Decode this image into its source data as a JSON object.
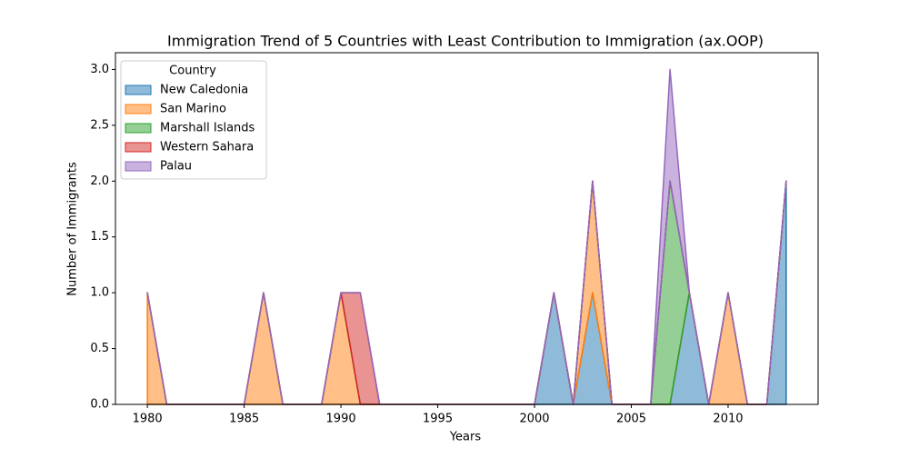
{
  "chart_data": {
    "type": "stacked_area",
    "title": "Immigration Trend of 5 Countries with Least Contribution to Immigration (ax.OOP)",
    "x_label": "Years",
    "y_label": "Number of Immigrants",
    "legend_title": "Country",
    "legend_position": "upper left",
    "x": [
      1980,
      1981,
      1982,
      1983,
      1984,
      1985,
      1986,
      1987,
      1988,
      1989,
      1990,
      1991,
      1992,
      1993,
      1994,
      1995,
      1996,
      1997,
      1998,
      1999,
      2000,
      2001,
      2002,
      2003,
      2004,
      2005,
      2006,
      2007,
      2008,
      2009,
      2010,
      2011,
      2012,
      2013
    ],
    "series": [
      {
        "name": "New Caledonia",
        "color": "#1f77b4",
        "values": [
          0,
          0,
          0,
          0,
          0,
          0,
          0,
          0,
          0,
          0,
          0,
          0,
          0,
          0,
          0,
          0,
          0,
          0,
          0,
          0,
          0,
          1,
          0,
          1,
          0,
          0,
          0,
          0,
          1,
          0,
          0,
          0,
          0,
          2
        ]
      },
      {
        "name": "San Marino",
        "color": "#ff7f0e",
        "values": [
          1,
          0,
          0,
          0,
          0,
          0,
          1,
          0,
          0,
          0,
          1,
          0,
          0,
          0,
          0,
          0,
          0,
          0,
          0,
          0,
          0,
          0,
          0,
          1,
          0,
          0,
          0,
          0,
          0,
          0,
          1,
          0,
          0,
          0
        ]
      },
      {
        "name": "Marshall Islands",
        "color": "#2ca02c",
        "values": [
          0,
          0,
          0,
          0,
          0,
          0,
          0,
          0,
          0,
          0,
          0,
          0,
          0,
          0,
          0,
          0,
          0,
          0,
          0,
          0,
          0,
          0,
          0,
          0,
          0,
          0,
          0,
          2,
          0,
          0,
          0,
          0,
          0,
          0
        ]
      },
      {
        "name": "Western Sahara",
        "color": "#d62728",
        "values": [
          0,
          0,
          0,
          0,
          0,
          0,
          0,
          0,
          0,
          0,
          0,
          1,
          0,
          0,
          0,
          0,
          0,
          0,
          0,
          0,
          0,
          0,
          0,
          0,
          0,
          0,
          0,
          0,
          0,
          0,
          0,
          0,
          0,
          0
        ]
      },
      {
        "name": "Palau",
        "color": "#9467bd",
        "values": [
          0,
          0,
          0,
          0,
          0,
          0,
          0,
          0,
          0,
          0,
          0,
          0,
          0,
          0,
          0,
          0,
          0,
          0,
          0,
          0,
          0,
          0,
          0,
          0,
          0,
          0,
          0,
          1,
          0,
          0,
          0,
          0,
          0,
          0
        ]
      }
    ],
    "xlim": [
      1978.35,
      2014.65
    ],
    "xticks": [
      1980,
      1985,
      1990,
      1995,
      2000,
      2005,
      2010
    ],
    "ylim": [
      0,
      3.15
    ],
    "yticks": [
      {
        "value": 0,
        "label": "0.0"
      },
      0.5,
      {
        "value": 1,
        "label": "1.0"
      },
      1.5,
      {
        "value": 2,
        "label": "2.0"
      },
      2.5,
      {
        "value": 3,
        "label": "3.0"
      }
    ]
  }
}
